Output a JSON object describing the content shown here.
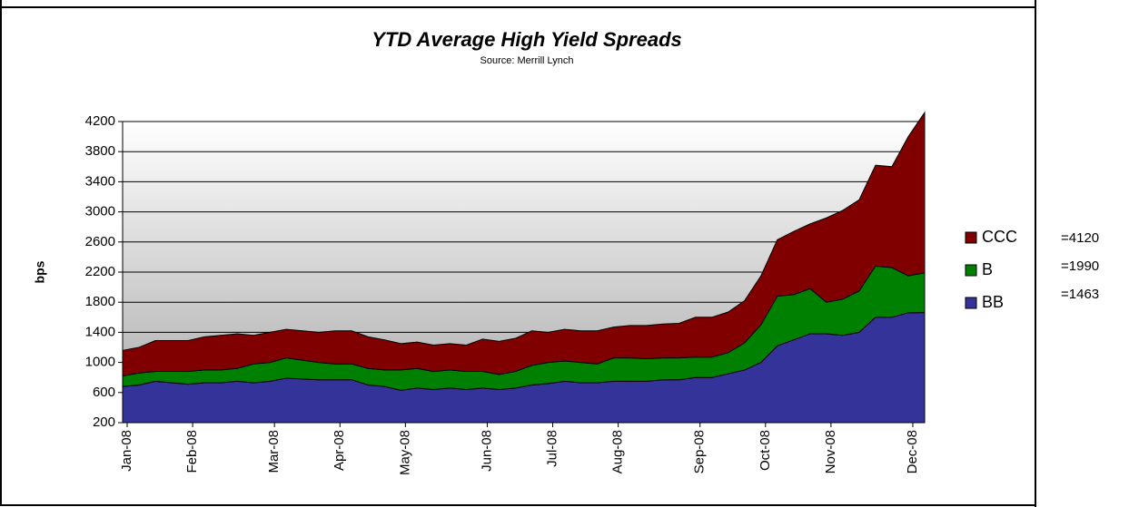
{
  "chart_data": {
    "type": "stacked_area",
    "title": "YTD Average High Yield Spreads",
    "subtitle": "Source: Merrill Lynch",
    "y_label": "bps",
    "categories": [
      "Jan-08",
      null,
      null,
      null,
      "Feb-08",
      null,
      null,
      null,
      null,
      "Mar-08",
      null,
      null,
      null,
      "Apr-08",
      null,
      null,
      null,
      "May-08",
      null,
      null,
      null,
      null,
      "Jun-08",
      null,
      null,
      null,
      "Jul-08",
      null,
      null,
      null,
      "Aug-08",
      null,
      null,
      null,
      null,
      "Sep-08",
      null,
      null,
      null,
      "Oct-08",
      null,
      null,
      null,
      "Nov-08",
      null,
      null,
      null,
      null,
      "Dec-08",
      null
    ],
    "series": [
      {
        "name": "BB",
        "color": "#333399",
        "values": [
          480,
          500,
          550,
          530,
          510,
          530,
          530,
          550,
          530,
          550,
          590,
          580,
          570,
          570,
          570,
          500,
          480,
          430,
          460,
          440,
          460,
          440,
          460,
          440,
          460,
          500,
          520,
          550,
          530,
          530,
          550,
          550,
          550,
          570,
          570,
          600,
          600,
          650,
          700,
          800,
          1020,
          1100,
          1180,
          1180,
          1160,
          1200,
          1400,
          1400,
          1460,
          1463
        ]
      },
      {
        "name": "B",
        "color": "#008000",
        "values": [
          140,
          160,
          130,
          150,
          170,
          170,
          170,
          170,
          250,
          250,
          270,
          250,
          230,
          210,
          210,
          220,
          220,
          270,
          260,
          240,
          240,
          240,
          220,
          200,
          220,
          260,
          280,
          270,
          270,
          250,
          310,
          310,
          300,
          290,
          290,
          270,
          270,
          280,
          360,
          500,
          660,
          600,
          600,
          420,
          480,
          550,
          680,
          660,
          490,
          527
        ]
      },
      {
        "name": "CCC",
        "color": "#800000",
        "values": [
          340,
          340,
          410,
          410,
          410,
          440,
          460,
          460,
          380,
          400,
          380,
          390,
          400,
          440,
          440,
          420,
          400,
          350,
          350,
          350,
          350,
          350,
          430,
          440,
          440,
          460,
          400,
          420,
          420,
          440,
          410,
          430,
          440,
          450,
          460,
          530,
          530,
          540,
          560,
          650,
          750,
          840,
          860,
          1120,
          1180,
          1210,
          1340,
          1340,
          1850,
          2130
        ]
      }
    ],
    "annotations": [
      "=4120",
      "=1990",
      "=1463"
    ],
    "ylim": [
      200,
      4200
    ],
    "yticks": [
      200,
      600,
      1000,
      1400,
      1800,
      2200,
      2600,
      3000,
      3400,
      3800,
      4200
    ],
    "grid": true,
    "legend": "right"
  }
}
